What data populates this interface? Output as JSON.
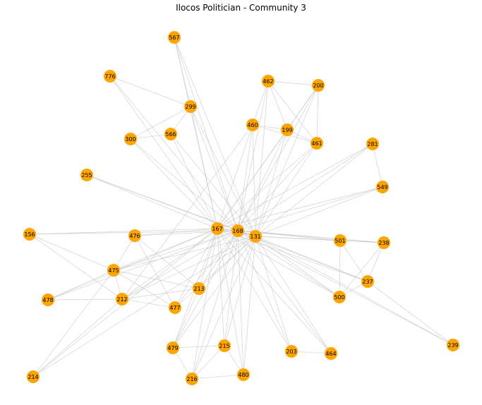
{
  "title": "Ilocos Politician - Community 3",
  "colors": {
    "node": "#FFA500",
    "edge": "#c8c8c8",
    "label": "#000000"
  },
  "nodes": [
    {
      "id": "567"
    },
    {
      "id": "776"
    },
    {
      "id": "299"
    },
    {
      "id": "462"
    },
    {
      "id": "200"
    },
    {
      "id": "300"
    },
    {
      "id": "566"
    },
    {
      "id": "460"
    },
    {
      "id": "199"
    },
    {
      "id": "461"
    },
    {
      "id": "281"
    },
    {
      "id": "255"
    },
    {
      "id": "549"
    },
    {
      "id": "156"
    },
    {
      "id": "476"
    },
    {
      "id": "167"
    },
    {
      "id": "168"
    },
    {
      "id": "131"
    },
    {
      "id": "501"
    },
    {
      "id": "238"
    },
    {
      "id": "475"
    },
    {
      "id": "237"
    },
    {
      "id": "478"
    },
    {
      "id": "212"
    },
    {
      "id": "213"
    },
    {
      "id": "500"
    },
    {
      "id": "477"
    },
    {
      "id": "479"
    },
    {
      "id": "215"
    },
    {
      "id": "203"
    },
    {
      "id": "464"
    },
    {
      "id": "239"
    },
    {
      "id": "214"
    },
    {
      "id": "216"
    },
    {
      "id": "480"
    }
  ],
  "edges": [
    [
      "567",
      "299"
    ],
    [
      "567",
      "167"
    ],
    [
      "567",
      "168"
    ],
    [
      "567",
      "131"
    ],
    [
      "776",
      "299"
    ],
    [
      "776",
      "167"
    ],
    [
      "776",
      "168"
    ],
    [
      "299",
      "300"
    ],
    [
      "299",
      "566"
    ],
    [
      "299",
      "167"
    ],
    [
      "299",
      "168"
    ],
    [
      "299",
      "131"
    ],
    [
      "300",
      "566"
    ],
    [
      "300",
      "167"
    ],
    [
      "300",
      "168"
    ],
    [
      "566",
      "167"
    ],
    [
      "566",
      "131"
    ],
    [
      "462",
      "200"
    ],
    [
      "462",
      "460"
    ],
    [
      "462",
      "199"
    ],
    [
      "462",
      "461"
    ],
    [
      "462",
      "168"
    ],
    [
      "462",
      "131"
    ],
    [
      "200",
      "199"
    ],
    [
      "200",
      "461"
    ],
    [
      "200",
      "167"
    ],
    [
      "200",
      "168"
    ],
    [
      "200",
      "131"
    ],
    [
      "460",
      "199"
    ],
    [
      "460",
      "461"
    ],
    [
      "460",
      "167"
    ],
    [
      "460",
      "168"
    ],
    [
      "460",
      "131"
    ],
    [
      "460",
      "212"
    ],
    [
      "199",
      "461"
    ],
    [
      "199",
      "167"
    ],
    [
      "199",
      "168"
    ],
    [
      "199",
      "131"
    ],
    [
      "461",
      "167"
    ],
    [
      "461",
      "168"
    ],
    [
      "461",
      "131"
    ],
    [
      "281",
      "549"
    ],
    [
      "281",
      "167"
    ],
    [
      "281",
      "168"
    ],
    [
      "281",
      "131"
    ],
    [
      "549",
      "167"
    ],
    [
      "549",
      "168"
    ],
    [
      "549",
      "131"
    ],
    [
      "255",
      "167"
    ],
    [
      "255",
      "168"
    ],
    [
      "255",
      "131"
    ],
    [
      "156",
      "167"
    ],
    [
      "156",
      "475"
    ],
    [
      "156",
      "212"
    ],
    [
      "156",
      "168"
    ],
    [
      "476",
      "167"
    ],
    [
      "476",
      "475"
    ],
    [
      "476",
      "213"
    ],
    [
      "476",
      "477"
    ],
    [
      "476",
      "168"
    ],
    [
      "167",
      "168"
    ],
    [
      "167",
      "131"
    ],
    [
      "167",
      "501"
    ],
    [
      "167",
      "238"
    ],
    [
      "167",
      "237"
    ],
    [
      "167",
      "475"
    ],
    [
      "167",
      "212"
    ],
    [
      "167",
      "213"
    ],
    [
      "167",
      "477"
    ],
    [
      "167",
      "478"
    ],
    [
      "167",
      "479"
    ],
    [
      "167",
      "215"
    ],
    [
      "167",
      "216"
    ],
    [
      "167",
      "480"
    ],
    [
      "167",
      "214"
    ],
    [
      "167",
      "500"
    ],
    [
      "167",
      "203"
    ],
    [
      "167",
      "464"
    ],
    [
      "168",
      "131"
    ],
    [
      "168",
      "501"
    ],
    [
      "168",
      "238"
    ],
    [
      "168",
      "237"
    ],
    [
      "168",
      "212"
    ],
    [
      "168",
      "475"
    ],
    [
      "168",
      "213"
    ],
    [
      "168",
      "477"
    ],
    [
      "168",
      "479"
    ],
    [
      "168",
      "215"
    ],
    [
      "168",
      "216"
    ],
    [
      "168",
      "480"
    ],
    [
      "168",
      "203"
    ],
    [
      "168",
      "464"
    ],
    [
      "168",
      "500"
    ],
    [
      "168",
      "239"
    ],
    [
      "168",
      "478"
    ],
    [
      "131",
      "501"
    ],
    [
      "131",
      "238"
    ],
    [
      "131",
      "237"
    ],
    [
      "131",
      "500"
    ],
    [
      "131",
      "239"
    ],
    [
      "131",
      "212"
    ],
    [
      "131",
      "475"
    ],
    [
      "131",
      "213"
    ],
    [
      "131",
      "479"
    ],
    [
      "131",
      "215"
    ],
    [
      "131",
      "216"
    ],
    [
      "131",
      "480"
    ],
    [
      "131",
      "203"
    ],
    [
      "131",
      "464"
    ],
    [
      "131",
      "214"
    ],
    [
      "131",
      "477"
    ],
    [
      "501",
      "238"
    ],
    [
      "501",
      "500"
    ],
    [
      "501",
      "237"
    ],
    [
      "238",
      "237"
    ],
    [
      "238",
      "500"
    ],
    [
      "237",
      "500"
    ],
    [
      "237",
      "239"
    ],
    [
      "475",
      "212"
    ],
    [
      "475",
      "478"
    ],
    [
      "475",
      "213"
    ],
    [
      "475",
      "477"
    ],
    [
      "475",
      "214"
    ],
    [
      "212",
      "478"
    ],
    [
      "212",
      "213"
    ],
    [
      "212",
      "477"
    ],
    [
      "212",
      "214"
    ],
    [
      "213",
      "479"
    ],
    [
      "479",
      "215"
    ],
    [
      "479",
      "216"
    ],
    [
      "215",
      "216"
    ],
    [
      "216",
      "480"
    ],
    [
      "215",
      "480"
    ],
    [
      "203",
      "464"
    ]
  ]
}
